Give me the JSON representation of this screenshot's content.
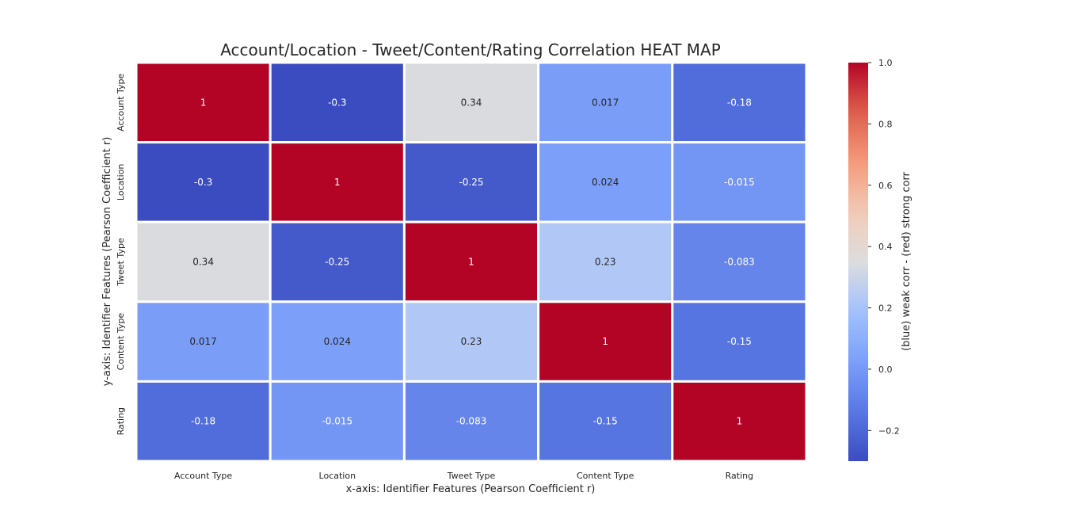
{
  "chart_data": {
    "type": "heatmap",
    "title": "Account/Location - Tweet/Content/Rating Correlation HEAT MAP",
    "xlabel": "x-axis: Identifier Features (Pearson Coefficient r)",
    "ylabel": "y-axis: Identifier Features (Pearson Coefficient r)",
    "x_categories": [
      "Account Type",
      "Location",
      "Tweet Type",
      "Content Type",
      "Rating"
    ],
    "y_categories": [
      "Account Type",
      "Location",
      "Tweet Type",
      "Content Type",
      "Rating"
    ],
    "values": [
      [
        1,
        -0.3,
        0.34,
        0.017,
        -0.18
      ],
      [
        -0.3,
        1,
        -0.25,
        0.024,
        -0.015
      ],
      [
        0.34,
        -0.25,
        1,
        0.23,
        -0.083
      ],
      [
        0.017,
        0.024,
        0.23,
        1,
        -0.15
      ],
      [
        -0.18,
        -0.015,
        -0.083,
        -0.15,
        1
      ]
    ],
    "annotations": [
      [
        "1",
        "-0.3",
        "0.34",
        "0.017",
        "-0.18"
      ],
      [
        "-0.3",
        "1",
        "-0.25",
        "0.024",
        "-0.015"
      ],
      [
        "0.34",
        "-0.25",
        "1",
        "0.23",
        "-0.083"
      ],
      [
        "0.017",
        "0.024",
        "0.23",
        "1",
        "-0.15"
      ],
      [
        "-0.18",
        "-0.015",
        "-0.083",
        "-0.15",
        "1"
      ]
    ],
    "colormap": "coolwarm",
    "vmin": -0.3,
    "vmax": 1.0,
    "colorbar": {
      "label": "(blue) weak corr - (red) strong corr",
      "ticks": [
        -0.2,
        0.0,
        0.2,
        0.4,
        0.6,
        0.8,
        1.0
      ],
      "tick_labels": [
        "−0.2",
        "0.0",
        "0.2",
        "0.4",
        "0.6",
        "0.8",
        "1.0"
      ]
    },
    "grid": false
  }
}
